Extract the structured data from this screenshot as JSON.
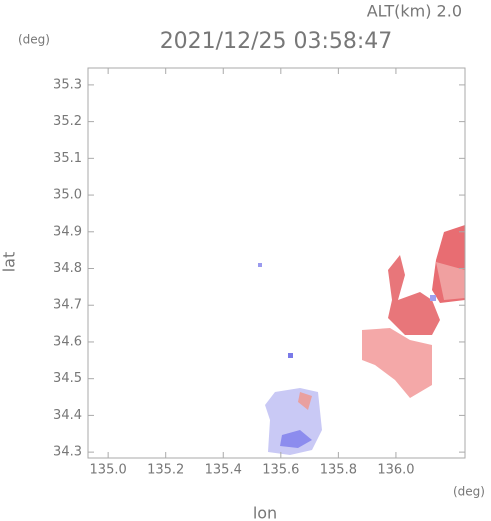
{
  "chart_data": {
    "type": "map",
    "title": "2021/12/25 03:58:47",
    "altitude_label": "ALT(km) 2.0",
    "x_label": "lon",
    "y_label": "lat",
    "x_unit": "(deg)",
    "y_unit": "(deg)",
    "xlim": [
      134.93,
      136.24
    ],
    "ylim": [
      34.284,
      35.346
    ],
    "xticks": [
      {
        "value": 135.0,
        "label": "135.0"
      },
      135.2,
      135.4,
      135.6,
      135.8,
      {
        "value": 136.0,
        "label": "136.0"
      }
    ],
    "yticks": [
      34.3,
      34.4,
      34.5,
      34.6,
      34.7,
      34.8,
      34.9,
      {
        "value": 35.0,
        "label": "35.0"
      },
      35.1,
      35.2,
      35.3
    ]
  }
}
